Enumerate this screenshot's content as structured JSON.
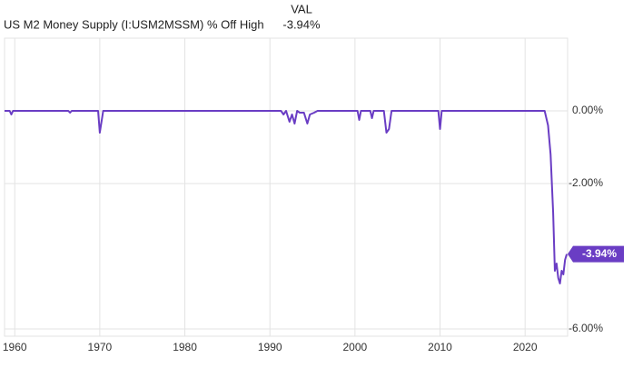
{
  "chart_data": {
    "type": "line",
    "title": "US M2 Money Supply (I:USM2MSSM) % Off High",
    "column_header": "VAL",
    "current_value_label": "-3.94%",
    "series": [
      {
        "name": "US M2 Money Supply (I:USM2MSSM) % Off High",
        "color": "#6a3dc4",
        "x": [
          1958.8,
          1959.4,
          1959.6,
          1959.8,
          1966.3,
          1966.5,
          1966.7,
          1969.8,
          1970.0,
          1970.2,
          1970.4,
          1991.3,
          1991.6,
          1991.9,
          1992.3,
          1992.6,
          1992.9,
          1993.2,
          1993.5,
          1994.0,
          1994.4,
          1994.7,
          1995.2,
          1995.6,
          2000.3,
          2000.5,
          2000.7,
          2001.8,
          2002.0,
          2002.2,
          2003.4,
          2003.7,
          2004.0,
          2004.3,
          2009.8,
          2010.0,
          2010.2,
          2022.3,
          2022.7,
          2023.0,
          2023.3,
          2023.5,
          2023.7,
          2023.9,
          2024.1,
          2024.3,
          2024.5,
          2024.7,
          2024.9
        ],
        "values": [
          0,
          0,
          -0.1,
          0,
          0,
          -0.05,
          0,
          0,
          -0.6,
          -0.3,
          0,
          0,
          -0.1,
          0,
          -0.3,
          -0.1,
          -0.35,
          0,
          -0.05,
          -0.05,
          -0.35,
          -0.1,
          -0.05,
          0,
          0,
          -0.25,
          0,
          0,
          -0.2,
          0,
          0,
          -0.6,
          -0.5,
          0,
          0,
          -0.5,
          0,
          0,
          -0.4,
          -1.2,
          -2.8,
          -4.4,
          -4.2,
          -4.6,
          -4.75,
          -4.4,
          -4.5,
          -4.1,
          -3.94
        ]
      }
    ],
    "value_labels": [
      "-3.94%"
    ],
    "xlim": [
      1958.8,
      2025
    ],
    "xticks": [
      1960,
      1970,
      1980,
      1990,
      2000,
      2010,
      2020
    ],
    "ylim": [
      -6.2,
      2
    ],
    "yticks": [
      {
        "value": 0,
        "label": "0.00%"
      },
      {
        "value": -2,
        "label": "-2.00%"
      },
      {
        "value": -6,
        "label": "-6.00%"
      }
    ],
    "grid": true
  }
}
